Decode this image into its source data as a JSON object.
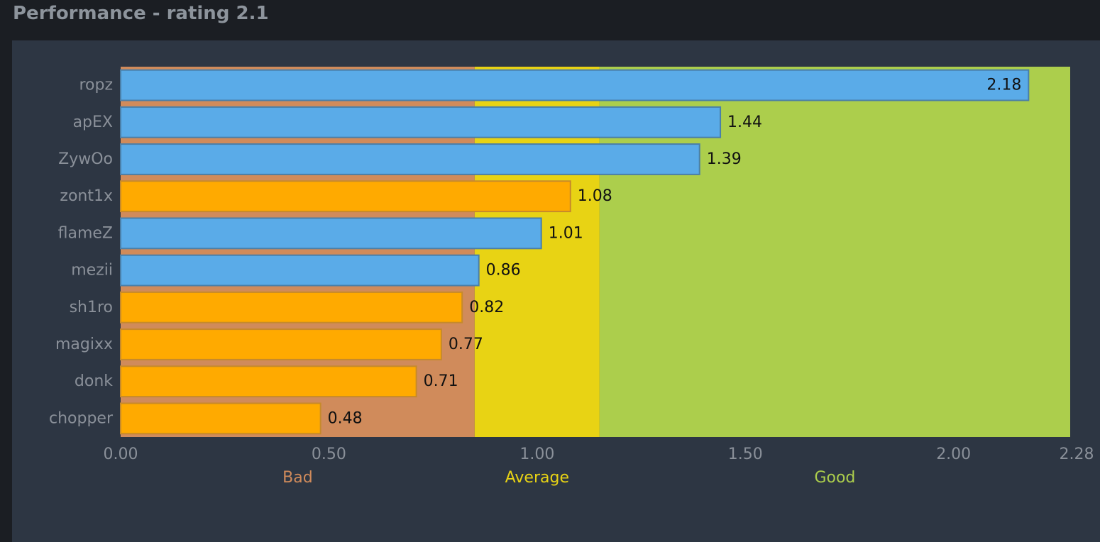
{
  "header": {
    "title": "Performance - rating 2.1"
  },
  "colors": {
    "bad_zone": "#d08b5b",
    "average_zone": "#e8d314",
    "good_zone": "#acce4c",
    "bar_blue": "#5aabe8",
    "bar_blue_border": "#4a7fa8",
    "bar_orange": "#ffaa00",
    "bar_orange_border": "#c78a2a",
    "bad_label": "#d08b5b",
    "average_label": "#e8d314",
    "good_label": "#acce4c"
  },
  "chart_data": {
    "type": "bar",
    "orientation": "horizontal",
    "title": "",
    "xlim": [
      0,
      2.28
    ],
    "x_ticks": [
      0,
      0.5,
      1.0,
      1.5,
      2.0,
      2.28
    ],
    "x_tick_labels": [
      "0.00",
      "0.50",
      "1.00",
      "1.50",
      "2.00",
      "2.28"
    ],
    "zones": [
      {
        "name": "Bad",
        "from": 0,
        "to": 0.85,
        "color": "#d08b5b"
      },
      {
        "name": "Average",
        "from": 0.85,
        "to": 1.15,
        "color": "#e8d314"
      },
      {
        "name": "Good",
        "from": 1.15,
        "to": 2.28,
        "color": "#acce4c"
      }
    ],
    "categories": [
      "ropz",
      "apEX",
      "ZywOo",
      "zont1x",
      "flameZ",
      "mezii",
      "sh1ro",
      "magixx",
      "donk",
      "chopper"
    ],
    "values": [
      2.18,
      1.44,
      1.39,
      1.08,
      1.01,
      0.86,
      0.82,
      0.77,
      0.71,
      0.48
    ],
    "value_labels": [
      "2.18",
      "1.44",
      "1.39",
      "1.08",
      "1.01",
      "0.86",
      "0.82",
      "0.77",
      "0.71",
      "0.48"
    ],
    "bar_colors": [
      "blue",
      "blue",
      "blue",
      "orange",
      "blue",
      "blue",
      "orange",
      "orange",
      "orange",
      "orange"
    ]
  }
}
